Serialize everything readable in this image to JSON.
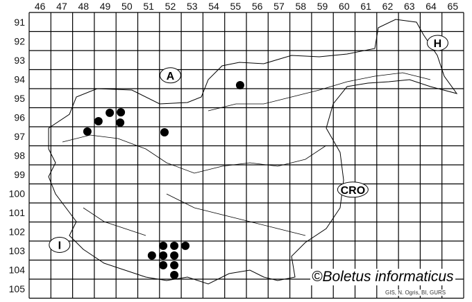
{
  "map": {
    "columns": [
      "46",
      "47",
      "48",
      "49",
      "50",
      "51",
      "52",
      "53",
      "54",
      "55",
      "56",
      "57",
      "58",
      "59",
      "60",
      "61",
      "62",
      "63",
      "64",
      "65"
    ],
    "rows": [
      "91",
      "92",
      "93",
      "94",
      "95",
      "96",
      "97",
      "98",
      "99",
      "100",
      "101",
      "102",
      "103",
      "104",
      "105"
    ],
    "country_labels": [
      {
        "text": "A",
        "x": 52.5,
        "y": 94.3
      },
      {
        "text": "H",
        "x": 64.8,
        "y": 92.6
      },
      {
        "text": "CRO",
        "x": 60.9,
        "y": 100.3
      },
      {
        "text": "I",
        "x": 47.4,
        "y": 103.2
      }
    ],
    "records": [
      {
        "x": 48.68,
        "y": 97.25
      },
      {
        "x": 49.19,
        "y": 96.71
      },
      {
        "x": 49.71,
        "y": 96.27
      },
      {
        "x": 50.22,
        "y": 96.24
      },
      {
        "x": 50.19,
        "y": 96.78
      },
      {
        "x": 52.23,
        "y": 97.29
      },
      {
        "x": 55.71,
        "y": 94.82
      },
      {
        "x": 51.65,
        "y": 103.76
      },
      {
        "x": 52.17,
        "y": 103.25
      },
      {
        "x": 52.68,
        "y": 103.25
      },
      {
        "x": 53.19,
        "y": 103.25
      },
      {
        "x": 52.17,
        "y": 103.76
      },
      {
        "x": 52.68,
        "y": 103.76
      },
      {
        "x": 52.17,
        "y": 104.27
      },
      {
        "x": 52.68,
        "y": 104.27
      },
      {
        "x": 52.68,
        "y": 104.78
      }
    ],
    "copyright": "©Boletus informaticus",
    "credit": "GIS, N. Ogris, BI, GURS",
    "dot_color": "#000000"
  }
}
